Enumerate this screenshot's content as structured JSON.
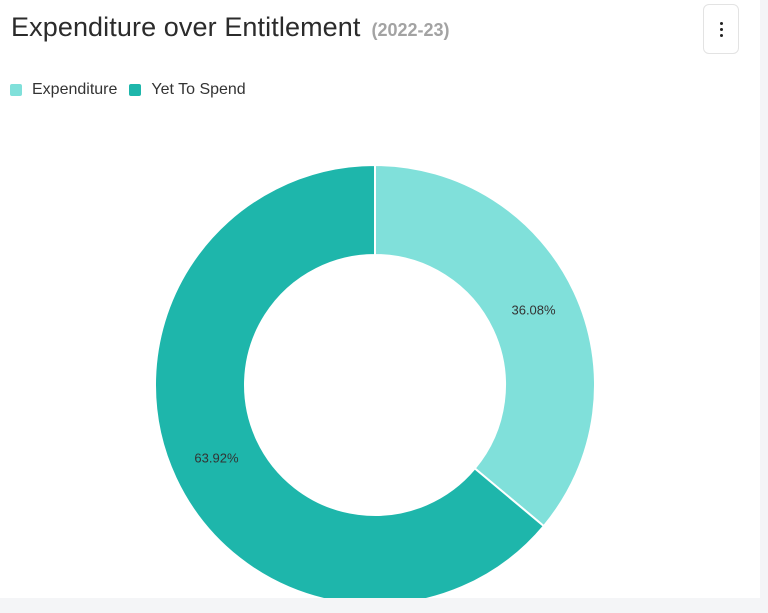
{
  "header": {
    "title": "Expenditure over Entitlement",
    "subtitle": "(2022-23)"
  },
  "menu": {
    "icon": "more-vertical-icon"
  },
  "legend": {
    "items": [
      {
        "label": "Expenditure",
        "color": "#80e0da"
      },
      {
        "label": "Yet To Spend",
        "color": "#1eb6ab"
      }
    ]
  },
  "chart_data": {
    "type": "pie",
    "variant": "donut",
    "title": "Expenditure over Entitlement",
    "subtitle": "(2022-23)",
    "legend_position": "top-left",
    "categories": [
      "Expenditure",
      "Yet To Spend"
    ],
    "values": [
      36.08,
      63.92
    ],
    "unit": "%",
    "data_labels": [
      "36.08%",
      "63.92%"
    ],
    "colors": [
      "#80e0da",
      "#1eb6ab"
    ]
  }
}
